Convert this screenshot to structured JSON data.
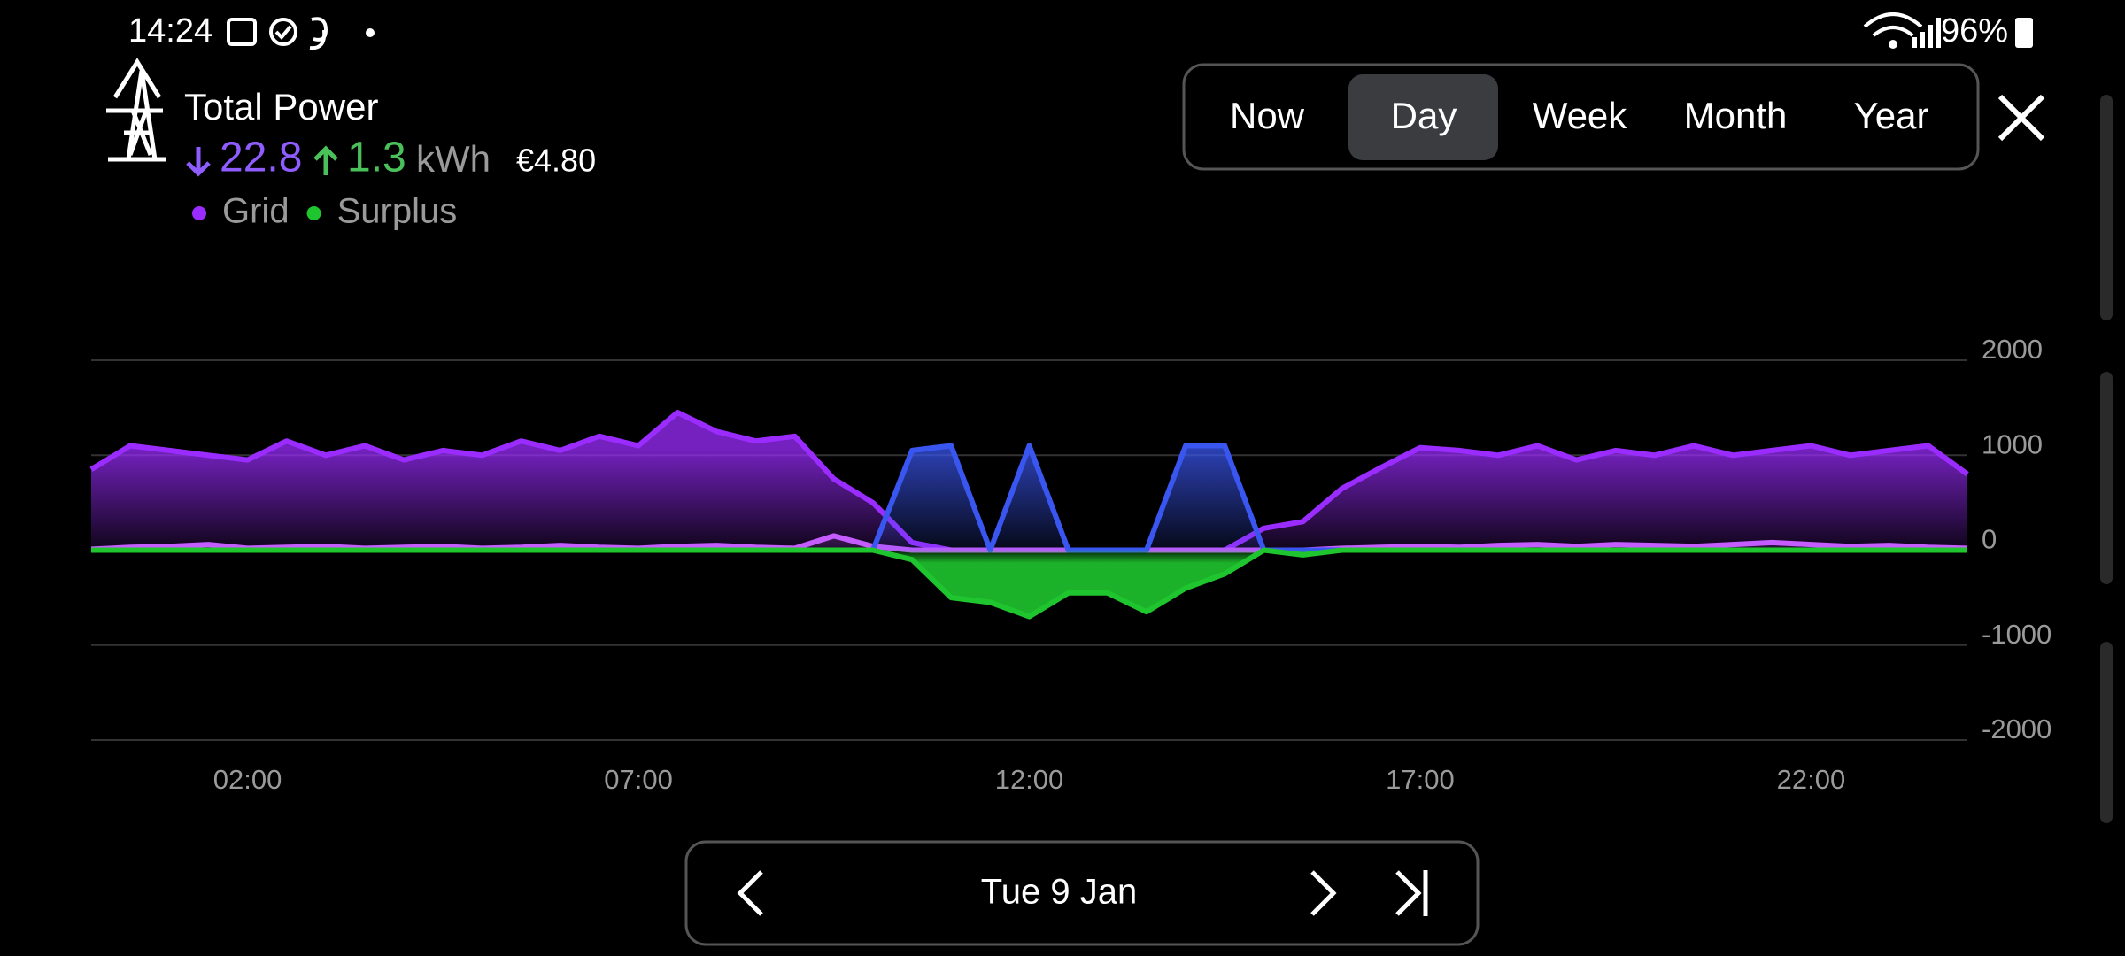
{
  "status_bar": {
    "time": "14:24",
    "battery": "96%"
  },
  "header": {
    "title": "Total Power",
    "import": "22.8",
    "export": "1.3",
    "unit": "kWh",
    "cost": "€4.80"
  },
  "tabs": [
    "Now",
    "Day",
    "Week",
    "Month",
    "Year"
  ],
  "date_nav": {
    "label": "Tue 9 Jan"
  },
  "chart_data": {
    "type": "area",
    "x": [
      0,
      0.5,
      1,
      1.5,
      2,
      2.5,
      3,
      3.5,
      4,
      4.5,
      5,
      5.5,
      6,
      6.5,
      7,
      7.5,
      8,
      8.5,
      9,
      9.5,
      10,
      10.5,
      11,
      11.5,
      12,
      12.5,
      13,
      13.5,
      14,
      14.5,
      15,
      15.5,
      16,
      16.5,
      17,
      17.5,
      18,
      18.5,
      19,
      19.5,
      20,
      20.5,
      21,
      21.5,
      22,
      22.5,
      23,
      23.5,
      24
    ],
    "series": [
      {
        "name": "Grid",
        "color": "#9b2cff",
        "values": [
          850,
          1100,
          1050,
          1000,
          950,
          1150,
          1000,
          1100,
          950,
          1050,
          1000,
          1150,
          1050,
          1200,
          1100,
          1450,
          1250,
          1150,
          1200,
          750,
          500,
          80,
          0,
          0,
          0,
          0,
          0,
          0,
          0,
          0,
          230,
          300,
          650,
          870,
          1080,
          1050,
          1000,
          1100,
          950,
          1050,
          1000,
          1100,
          1000,
          1050,
          1100,
          1000,
          1050,
          1100,
          800
        ]
      },
      {
        "color": "#c45cff",
        "values": [
          10,
          30,
          40,
          60,
          20,
          30,
          40,
          20,
          30,
          40,
          20,
          30,
          50,
          30,
          20,
          40,
          50,
          30,
          20,
          150,
          40,
          0,
          0,
          0,
          0,
          0,
          0,
          0,
          0,
          0,
          0,
          0,
          20,
          30,
          40,
          30,
          50,
          60,
          40,
          60,
          50,
          40,
          60,
          80,
          60,
          40,
          50,
          30,
          20
        ]
      },
      {
        "color": "#3a56f0",
        "values": [
          0,
          0,
          0,
          0,
          0,
          0,
          0,
          0,
          0,
          0,
          0,
          0,
          0,
          0,
          0,
          0,
          0,
          0,
          0,
          0,
          0,
          1050,
          1100,
          0,
          1100,
          0,
          0,
          0,
          1100,
          1100,
          0,
          0,
          0,
          0,
          0,
          0,
          0,
          0,
          0,
          0,
          0,
          0,
          0,
          0,
          0,
          0,
          0,
          0,
          0
        ]
      },
      {
        "name": "Surplus",
        "color": "#1fc52e",
        "values": [
          0,
          0,
          0,
          0,
          0,
          0,
          0,
          0,
          0,
          0,
          0,
          0,
          0,
          0,
          0,
          0,
          0,
          0,
          0,
          0,
          0,
          -100,
          -500,
          -550,
          -700,
          -450,
          -450,
          -650,
          -400,
          -250,
          0,
          -50,
          0,
          0,
          0,
          0,
          0,
          0,
          0,
          0,
          0,
          0,
          0,
          0,
          0,
          0,
          0,
          0,
          0
        ]
      }
    ],
    "xlim": [
      0,
      24
    ],
    "xticks": [
      {
        "value": 2,
        "label": "02:00"
      },
      {
        "value": 7,
        "label": "07:00"
      },
      {
        "value": 12,
        "label": "12:00"
      },
      {
        "value": 17,
        "label": "17:00"
      },
      {
        "value": 22,
        "label": "22:00"
      }
    ],
    "ylim": [
      -2000,
      2000
    ],
    "yticks": [
      2000,
      1000,
      0,
      -1000,
      -2000
    ],
    "grid": true
  }
}
